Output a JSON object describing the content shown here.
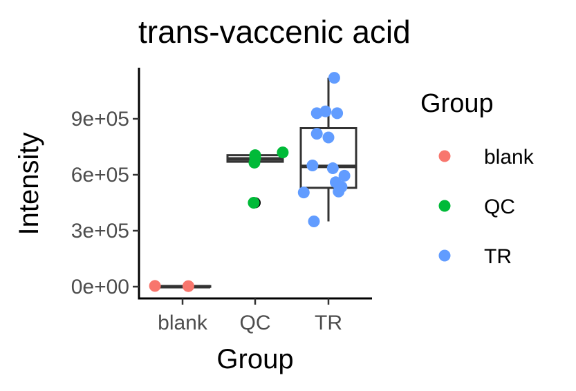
{
  "chart_data": {
    "type": "boxplot",
    "title": "trans-vaccenic acid",
    "xlabel": "Group",
    "ylabel": "Intensity",
    "categories": [
      "blank",
      "QC",
      "TR"
    ],
    "y_ticks": [
      0,
      300000,
      600000,
      900000
    ],
    "y_tick_labels": [
      "0e+00",
      "3e+05",
      "6e+05",
      "9e+05"
    ],
    "ylim": [
      -70000,
      1180000
    ],
    "grid": false,
    "legend": {
      "title": "Group",
      "position": "right",
      "entries": [
        {
          "label": "blank",
          "color": "#F8766D"
        },
        {
          "label": "QC",
          "color": "#00BA38"
        },
        {
          "label": "TR",
          "color": "#619CFF"
        }
      ]
    },
    "boxes": [
      {
        "group": "blank",
        "min": 0,
        "q1": 0,
        "median": 0,
        "q3": 3000,
        "max": 6000,
        "outliers": []
      },
      {
        "group": "QC",
        "min": 670000,
        "q1": 670000,
        "median": 685000,
        "q3": 705000,
        "max": 705000,
        "outliers": [
          450000
        ]
      },
      {
        "group": "TR",
        "min": 350000,
        "q1": 530000,
        "median": 645000,
        "q3": 850000,
        "max": 1120000,
        "outliers": []
      }
    ],
    "points": [
      {
        "group": "blank",
        "jitter": -0.38,
        "y": 4000
      },
      {
        "group": "blank",
        "jitter": 0.08,
        "y": 3000
      },
      {
        "group": "QC",
        "jitter": 0.0,
        "y": 705000
      },
      {
        "group": "QC",
        "jitter": 0.0,
        "y": 690000
      },
      {
        "group": "QC",
        "jitter": -0.01,
        "y": 665000
      },
      {
        "group": "QC",
        "jitter": 0.38,
        "y": 720000
      },
      {
        "group": "QC",
        "jitter": -0.02,
        "y": 450000
      },
      {
        "group": "TR",
        "jitter": 0.08,
        "y": 1120000
      },
      {
        "group": "TR",
        "jitter": -0.16,
        "y": 930000
      },
      {
        "group": "TR",
        "jitter": -0.04,
        "y": 940000
      },
      {
        "group": "TR",
        "jitter": 0.12,
        "y": 930000
      },
      {
        "group": "TR",
        "jitter": -0.16,
        "y": 820000
      },
      {
        "group": "TR",
        "jitter": 0.0,
        "y": 800000
      },
      {
        "group": "TR",
        "jitter": -0.22,
        "y": 650000
      },
      {
        "group": "TR",
        "jitter": 0.06,
        "y": 635000
      },
      {
        "group": "TR",
        "jitter": 0.22,
        "y": 595000
      },
      {
        "group": "TR",
        "jitter": 0.1,
        "y": 560000
      },
      {
        "group": "TR",
        "jitter": 0.18,
        "y": 535000
      },
      {
        "group": "TR",
        "jitter": 0.14,
        "y": 510000
      },
      {
        "group": "TR",
        "jitter": -0.34,
        "y": 505000
      },
      {
        "group": "TR",
        "jitter": -0.2,
        "y": 350000
      }
    ]
  }
}
